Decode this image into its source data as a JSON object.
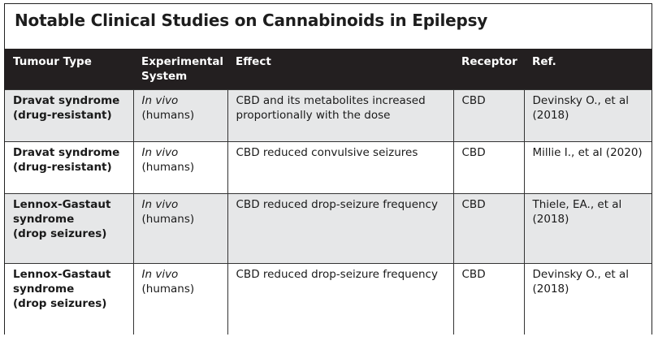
{
  "title": "Notable Clinical Studies on Cannabinoids in Epilepsy",
  "headers": {
    "type": "Tumour Type",
    "system_l1": "Experimental",
    "system_l2": "System",
    "effect": "Effect",
    "receptor": "Receptor",
    "ref": "Ref."
  },
  "rows": [
    {
      "type_l1": "Dravat syndrome",
      "type_l2": "(drug-resistant)",
      "type_l3": "",
      "sys_italic": "In vivo",
      "sys_plain": "(humans)",
      "effect_l1": "CBD and its metabolites increased",
      "effect_l2": "proportionally with the dose",
      "receptor": "CBD",
      "ref_l1": "Devinsky O., et al",
      "ref_l2": "(2018)"
    },
    {
      "type_l1": "Dravat syndrome",
      "type_l2": "(drug-resistant)",
      "type_l3": "",
      "sys_italic": "In vivo",
      "sys_plain": "(humans)",
      "effect_l1": "CBD reduced convulsive seizures",
      "effect_l2": "",
      "receptor": "CBD",
      "ref_l1": "Millie I., et al (2020)",
      "ref_l2": ""
    },
    {
      "type_l1": "Lennox-Gastaut",
      "type_l2": "syndrome",
      "type_l3": "(drop seizures)",
      "sys_italic": "In vivo",
      "sys_plain": "(humans)",
      "effect_l1": "CBD reduced drop-seizure frequency",
      "effect_l2": "",
      "receptor": "CBD",
      "ref_l1": "Thiele, EA., et al",
      "ref_l2": "(2018)"
    },
    {
      "type_l1": "Lennox-Gastaut",
      "type_l2": "syndrome",
      "type_l3": "(drop seizures)",
      "sys_italic": "In vivo",
      "sys_plain": "(humans)",
      "effect_l1": "CBD reduced drop-seizure frequency",
      "effect_l2": "",
      "receptor": "CBD",
      "ref_l1": "Devinsky O., et al",
      "ref_l2": "(2018)"
    }
  ],
  "colors": {
    "header_bg": "#231f20",
    "shaded_row": "#e6e7e8",
    "border": "#333333"
  }
}
